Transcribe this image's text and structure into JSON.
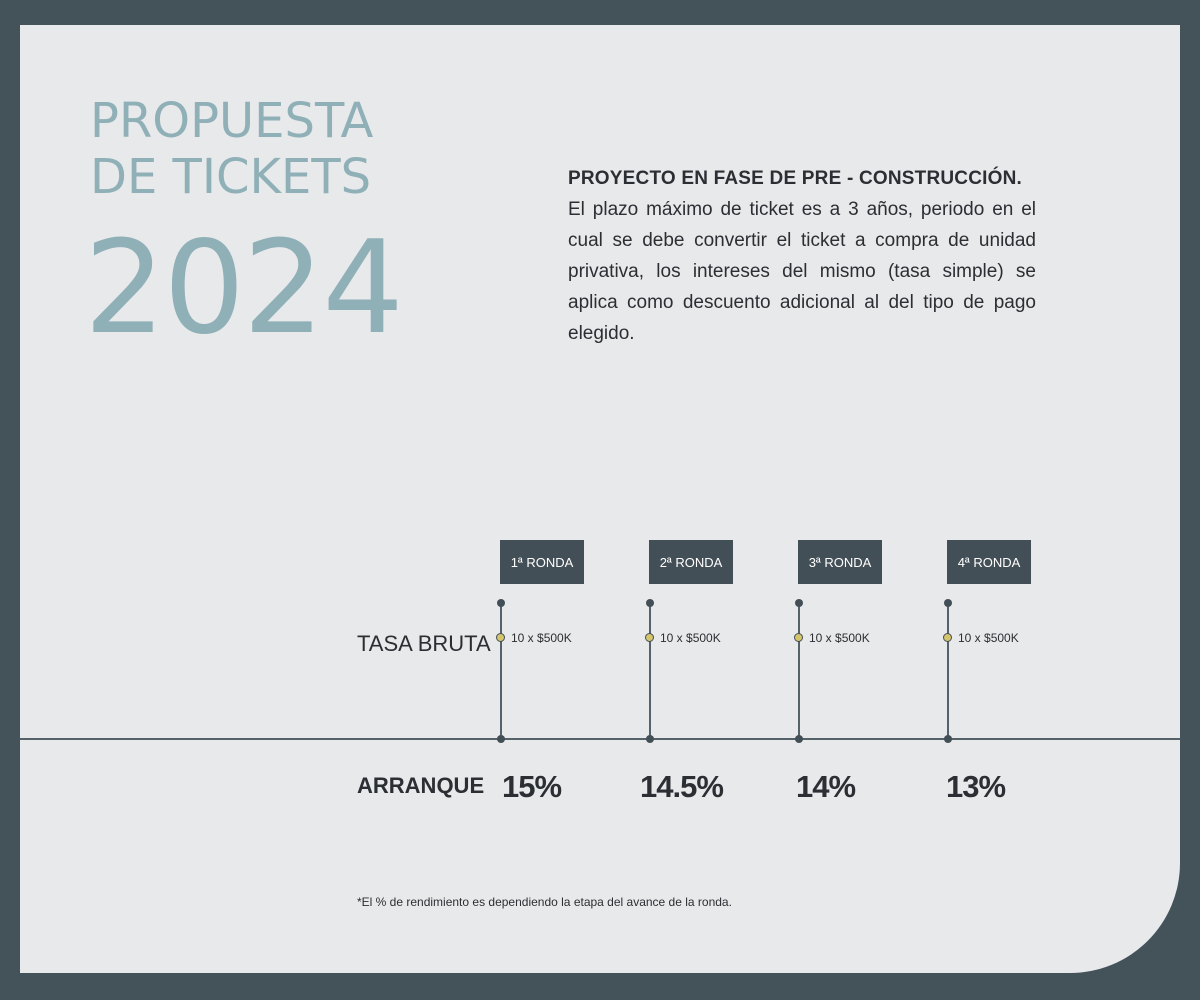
{
  "title": {
    "line1": "PROPUESTA",
    "line2": "DE TICKETS",
    "year": "2024"
  },
  "description": {
    "heading": "PROYECTO EN FASE DE PRE - CONSTRUCCIÓN.",
    "body": "El plazo máximo de ticket es a 3 años, periodo en el cual se debe convertir el ticket a compra de unidad privativa, los intereses del mismo (tasa simple) se aplica como descuento adicional al del tipo de pago elegido."
  },
  "labels": {
    "tasa_bruta": "TASA BRUTA",
    "arranque": "ARRANQUE"
  },
  "rounds": [
    {
      "tag": "1ª RONDA",
      "amount": "10 x $500K",
      "rate": "15%"
    },
    {
      "tag": "2ª RONDA",
      "amount": "10 x $500K",
      "rate": "14.5%"
    },
    {
      "tag": "3ª RONDA",
      "amount": "10 x $500K",
      "rate": "14%"
    },
    {
      "tag": "4ª RONDA",
      "amount": "10 x $500K",
      "rate": "13%"
    }
  ],
  "footnote": "*El % de rendimiento es dependiendo la etapa del avance de la ronda.",
  "colors": {
    "background": "#44525a",
    "card": "#e8e9eb",
    "title": "#90b0b8",
    "tag": "#434f56",
    "marker": "#d4c46a"
  }
}
